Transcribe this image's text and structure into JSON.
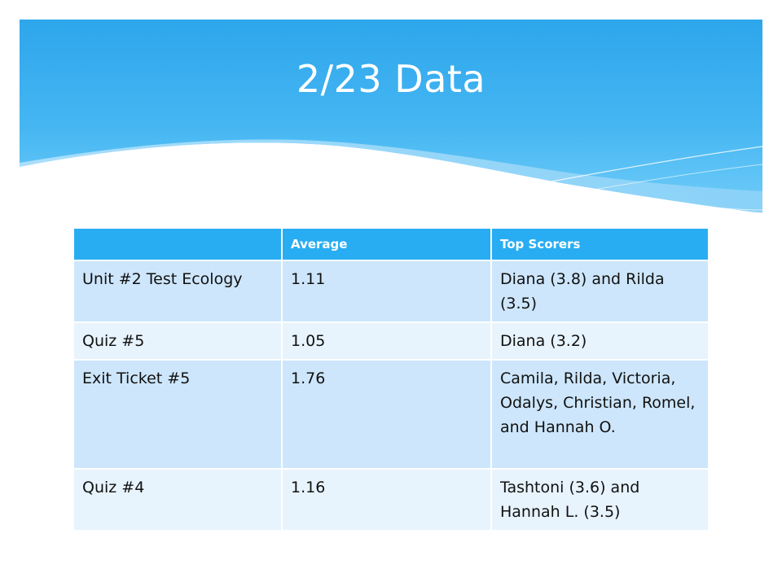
{
  "slide": {
    "title": "2/23 Data",
    "colors": {
      "header_top": "#2ea6ec",
      "header_mid": "#5fc2f5",
      "table_header": "#29adf2",
      "row_dark": "#cde6fb",
      "row_light": "#e7f3fd"
    }
  },
  "table": {
    "headers": [
      "",
      "Average",
      "Top Scorers"
    ],
    "rows": [
      {
        "assessment": "Unit #2 Test Ecology",
        "average": "1.11",
        "top_scorers": "Diana (3.8) and Rilda (3.5)"
      },
      {
        "assessment": "Quiz #5",
        "average": "1.05",
        "top_scorers": "Diana (3.2)"
      },
      {
        "assessment": "Exit Ticket #5",
        "average": "1.76",
        "top_scorers": "Camila, Rilda, Victoria, Odalys, Christian, Romel, and Hannah O."
      },
      {
        "assessment": "Quiz #4",
        "average": "1.16",
        "top_scorers": "Tashtoni (3.6) and Hannah L. (3.5)"
      }
    ]
  }
}
